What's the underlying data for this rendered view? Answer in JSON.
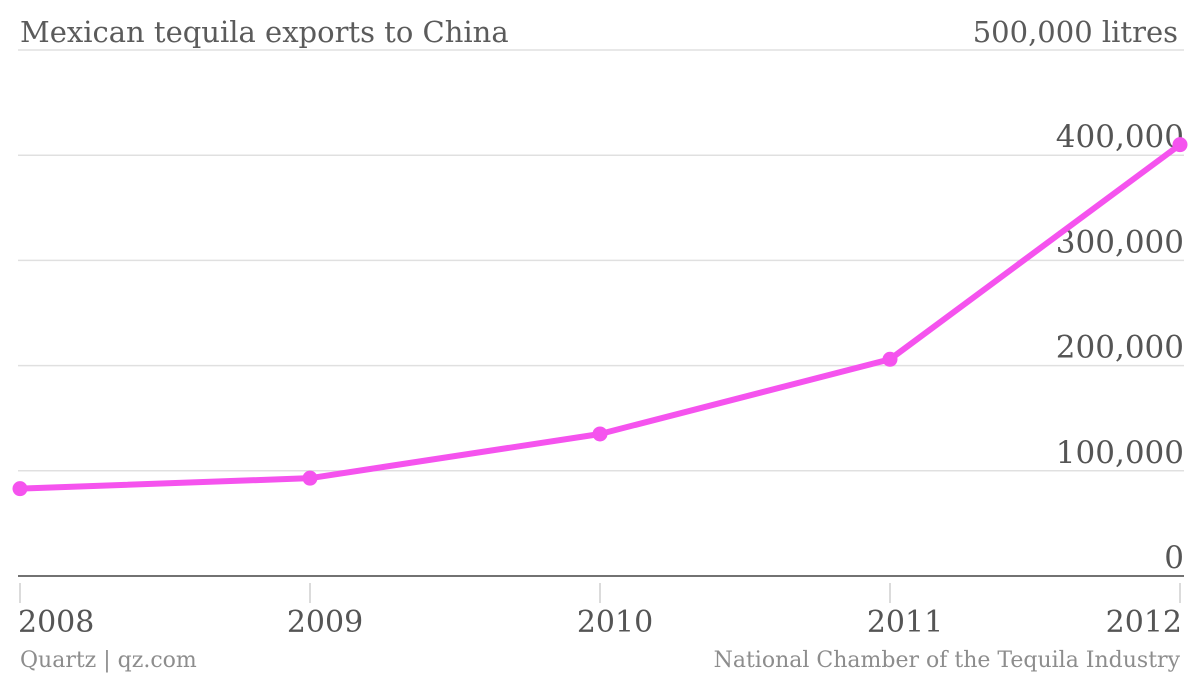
{
  "chart_data": {
    "type": "line",
    "title": "Mexican tequila exports to China",
    "unit_label": "500,000 litres",
    "x": [
      "2008",
      "2009",
      "2010",
      "2011",
      "2012"
    ],
    "series": [
      {
        "values": [
          83000,
          93000,
          135000,
          206000,
          410000
        ]
      }
    ],
    "ylim": [
      0,
      500000
    ],
    "yticks": [
      0,
      100000,
      200000,
      300000,
      400000
    ],
    "ytick_labels": [
      "0",
      "100,000",
      "200,000",
      "300,000",
      "400,000"
    ],
    "grid": true,
    "line_color": "#f553ee"
  },
  "footer": {
    "source_left": "Quartz | qz.com",
    "source_right": "National Chamber of the Tequila Industry"
  }
}
